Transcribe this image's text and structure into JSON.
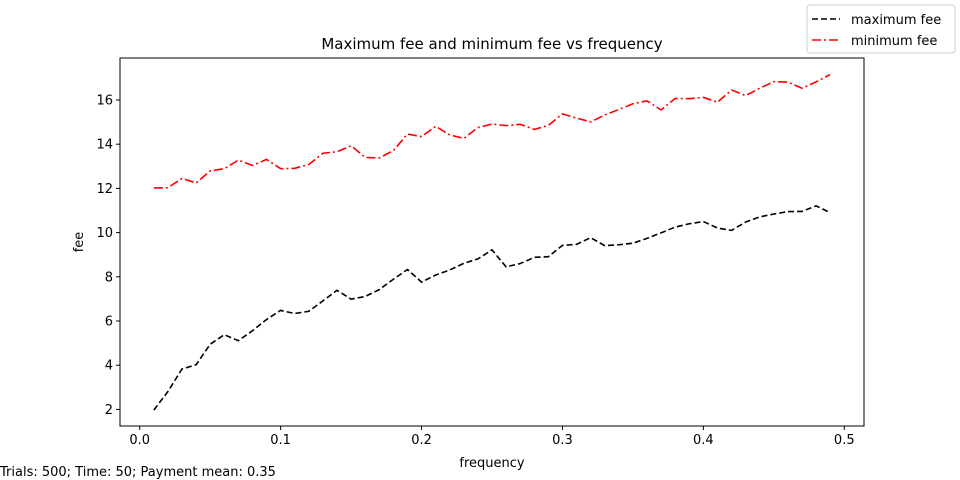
{
  "chart_data": {
    "type": "line",
    "title": "Maximum fee and minimum fee vs frequency",
    "xlabel": "frequency",
    "ylabel": "fee",
    "xlim": [
      -0.014,
      0.514
    ],
    "ylim": [
      1.25,
      17.9
    ],
    "xticks": [
      0.0,
      0.1,
      0.2,
      0.3,
      0.4,
      0.5
    ],
    "xtick_labels": [
      "0.0",
      "0.1",
      "0.2",
      "0.3",
      "0.4",
      "0.5"
    ],
    "yticks": [
      2,
      4,
      6,
      8,
      10,
      12,
      14,
      16
    ],
    "ytick_labels": [
      "2",
      "4",
      "6",
      "8",
      "10",
      "12",
      "14",
      "16"
    ],
    "grid": false,
    "legend_position": "top-right",
    "x": [
      0.01,
      0.02,
      0.03,
      0.04,
      0.05,
      0.06,
      0.07,
      0.08,
      0.09,
      0.1,
      0.11,
      0.12,
      0.13,
      0.14,
      0.15,
      0.16,
      0.17,
      0.18,
      0.19,
      0.2,
      0.21,
      0.22,
      0.23,
      0.24,
      0.25,
      0.26,
      0.27,
      0.28,
      0.29,
      0.3,
      0.31,
      0.32,
      0.33,
      0.34,
      0.35,
      0.36,
      0.37,
      0.38,
      0.39,
      0.4,
      0.41,
      0.42,
      0.43,
      0.44,
      0.45,
      0.46,
      0.47,
      0.48,
      0.49
    ],
    "series": [
      {
        "name": "maximum fee",
        "color": "#000000",
        "dash": "dashed",
        "values": [
          1.97,
          2.81,
          3.83,
          4.02,
          4.95,
          5.38,
          5.11,
          5.56,
          6.07,
          6.48,
          6.34,
          6.44,
          6.91,
          7.39,
          6.99,
          7.11,
          7.42,
          7.89,
          8.33,
          7.76,
          8.08,
          8.31,
          8.61,
          8.81,
          9.22,
          8.45,
          8.6,
          8.88,
          8.91,
          9.42,
          9.47,
          9.77,
          9.41,
          9.45,
          9.52,
          9.74,
          9.99,
          10.25,
          10.4,
          10.5,
          10.21,
          10.1,
          10.48,
          10.71,
          10.84,
          10.95,
          10.96,
          11.21,
          10.9
        ]
      },
      {
        "name": "minimum fee",
        "color": "#ff0000",
        "dash": "dashdot",
        "values": [
          12.02,
          12.03,
          12.45,
          12.25,
          12.79,
          12.89,
          13.28,
          13.04,
          13.31,
          12.89,
          12.91,
          13.08,
          13.59,
          13.66,
          13.93,
          13.4,
          13.38,
          13.71,
          14.46,
          14.34,
          14.81,
          14.42,
          14.26,
          14.75,
          14.91,
          14.84,
          14.9,
          14.67,
          14.85,
          15.37,
          15.18,
          15.01,
          15.32,
          15.57,
          15.83,
          15.96,
          15.55,
          16.07,
          16.06,
          16.12,
          15.9,
          16.45,
          16.2,
          16.53,
          16.83,
          16.81,
          16.53,
          16.82,
          17.15
        ]
      }
    ]
  },
  "footer": {
    "text": "Trials: 500; Time: 50; Payment mean: 0.35"
  }
}
